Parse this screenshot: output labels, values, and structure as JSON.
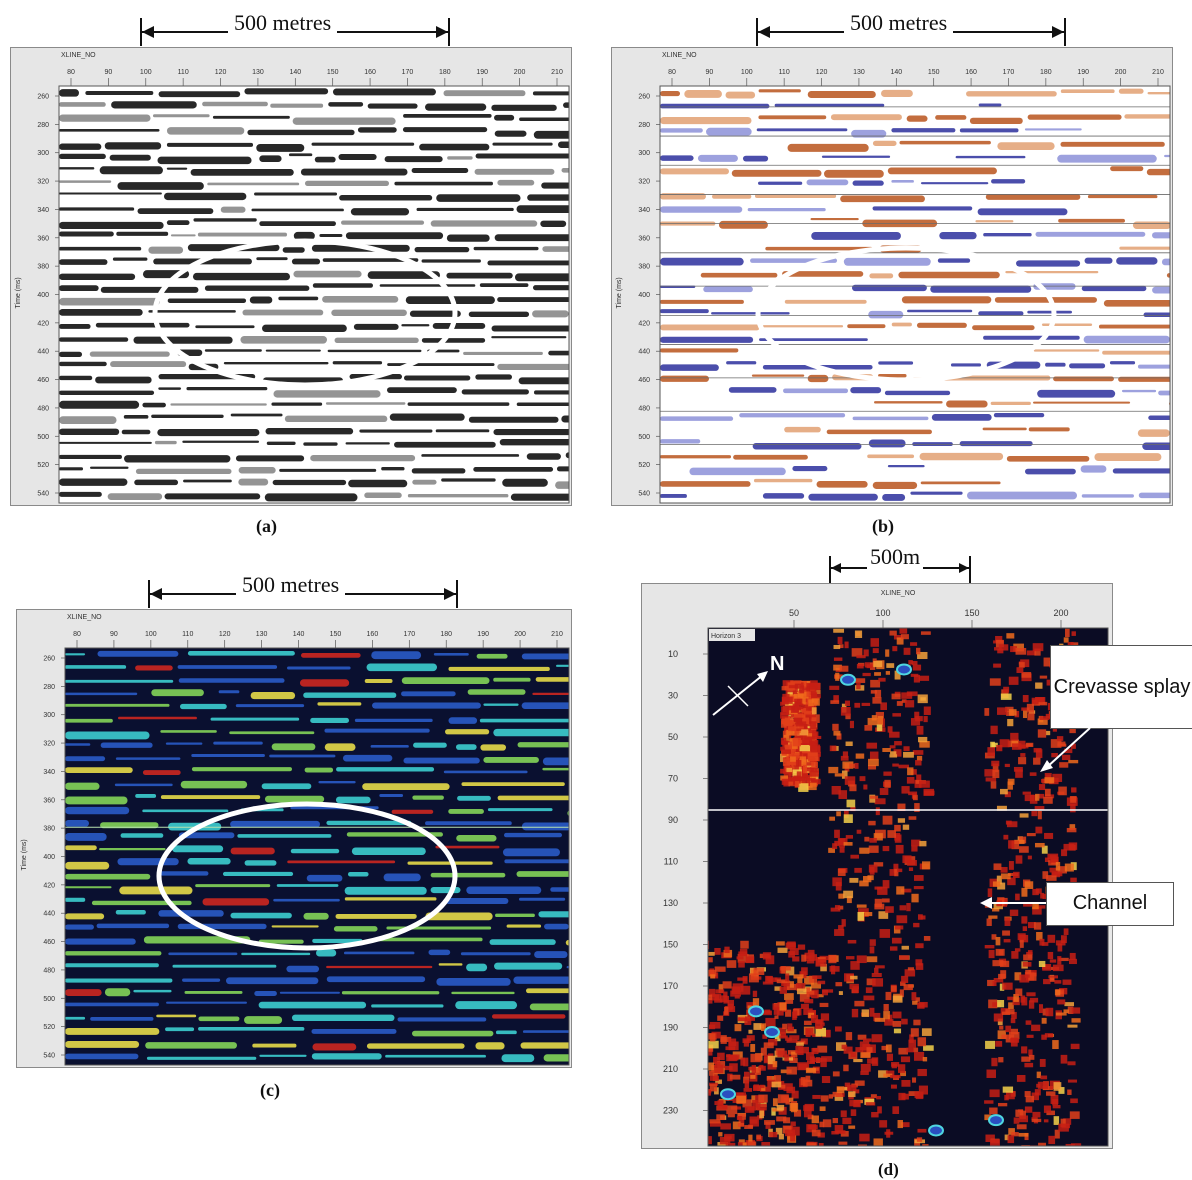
{
  "scale_labels": {
    "a": "500 metres",
    "b": "500 metres",
    "c": "500 metres",
    "d": "500m"
  },
  "captions": {
    "a": "(a)",
    "b": "(b)",
    "c": "(c)",
    "d": "(d)"
  },
  "axis": {
    "xline_title": "XLINE_NO",
    "time_title": "Time (ms)",
    "xline_ticks": [
      "80",
      "90",
      "100",
      "110",
      "120",
      "130",
      "140",
      "150",
      "160",
      "170",
      "180",
      "190",
      "200",
      "210"
    ],
    "time_ticks": [
      "260",
      "280",
      "300",
      "320",
      "340",
      "360",
      "380",
      "400",
      "420",
      "440",
      "460",
      "480",
      "500",
      "520",
      "540"
    ],
    "map_x_ticks": [
      "50",
      "100",
      "150",
      "200"
    ],
    "map_y_ticks": [
      "10",
      "30",
      "50",
      "70",
      "90",
      "110",
      "130",
      "150",
      "170",
      "190",
      "210",
      "230"
    ],
    "horizon_label": "Horizon 3"
  },
  "annotations": {
    "north": "N",
    "crevasse_splay": "Crevasse splay",
    "channel": "Channel"
  },
  "colors": {
    "variable_density": [
      "#000000",
      "#ffffff"
    ],
    "polarity": [
      "#2b2f9c",
      "#ffffff",
      "#b8541c"
    ],
    "envelope": [
      "#0a1030",
      "#2c5fd0",
      "#3fd9d9",
      "#f4e84a",
      "#d8281e"
    ],
    "map": [
      "#0b0c24",
      "#c71f14",
      "#f06b1c",
      "#f6d24a",
      "#4fd6e0",
      "#2a4fc0"
    ],
    "highlight_ellipse": "#ffffff"
  }
}
